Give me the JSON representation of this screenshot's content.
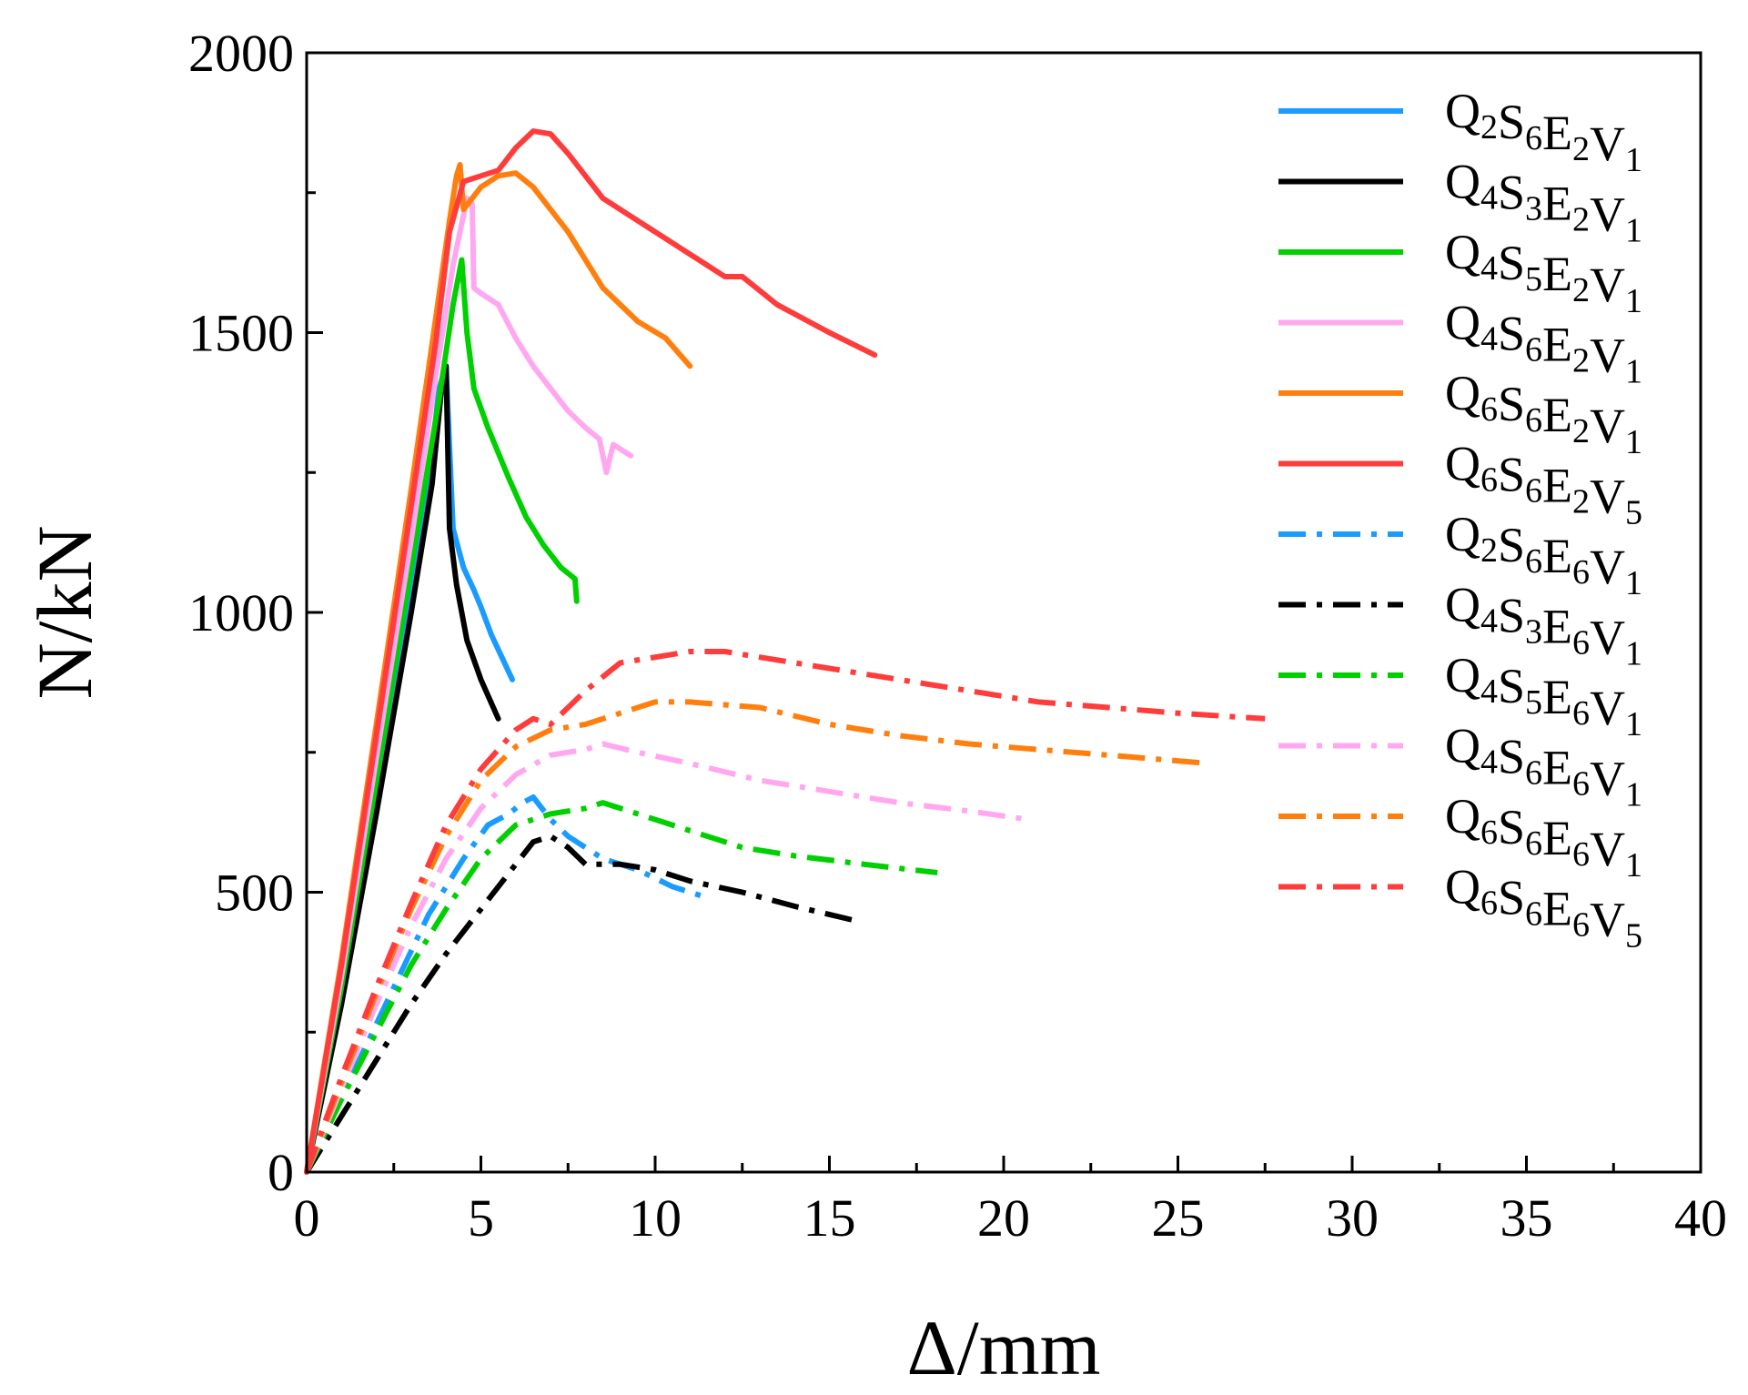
{
  "chart_data": {
    "type": "line",
    "title": "",
    "xlabel": "Δ/mm",
    "ylabel": "N/kN",
    "xlim": [
      0,
      40
    ],
    "ylim": [
      0,
      2000
    ],
    "xticks": [
      0,
      5,
      10,
      15,
      20,
      25,
      30,
      35,
      40
    ],
    "yticks": [
      0,
      500,
      1000,
      1500,
      2000
    ],
    "xtick_labels": [
      "0",
      "5",
      "10",
      "15",
      "20",
      "25",
      "30",
      "35",
      "40"
    ],
    "ytick_labels": [
      "0",
      "500",
      "1000",
      "1500",
      "2000"
    ],
    "grid": false,
    "legend_position": "top-right",
    "series": [
      {
        "name": "Q2S6E2V1",
        "parts": [
          [
            "Q",
            "2"
          ],
          [
            "S",
            "6"
          ],
          [
            "E",
            "2"
          ],
          [
            "V",
            "1"
          ]
        ],
        "color": "#1a9cff",
        "style": "solid",
        "x": [
          0,
          1,
          2,
          3,
          3.5,
          3.8,
          4.0,
          4.2,
          4.5,
          4.8,
          5.0,
          5.3,
          5.6,
          5.9
        ],
        "y": [
          0,
          320,
          680,
          1050,
          1230,
          1400,
          1440,
          1150,
          1080,
          1040,
          1010,
          960,
          920,
          880
        ]
      },
      {
        "name": "Q4S3E2V1",
        "parts": [
          [
            "Q",
            "4"
          ],
          [
            "S",
            "3"
          ],
          [
            "E",
            "2"
          ],
          [
            "V",
            "1"
          ]
        ],
        "color": "#000000",
        "style": "solid",
        "x": [
          0,
          1,
          2,
          3,
          3.6,
          3.9,
          4.0,
          4.1,
          4.3,
          4.6,
          5.0,
          5.5
        ],
        "y": [
          0,
          300,
          640,
          1000,
          1230,
          1420,
          1440,
          1150,
          1050,
          950,
          880,
          810
        ]
      },
      {
        "name": "Q4S5E2V1",
        "parts": [
          [
            "Q",
            "4"
          ],
          [
            "S",
            "5"
          ],
          [
            "E",
            "2"
          ],
          [
            "V",
            "1"
          ]
        ],
        "color": "#00d000",
        "style": "solid",
        "x": [
          0,
          1,
          2,
          3,
          3.8,
          4.2,
          4.45,
          4.6,
          4.8,
          5.2,
          5.8,
          6.3,
          6.8,
          7.3,
          7.7,
          7.75
        ],
        "y": [
          0,
          330,
          700,
          1080,
          1380,
          1550,
          1630,
          1500,
          1400,
          1330,
          1240,
          1170,
          1120,
          1080,
          1060,
          1020
        ]
      },
      {
        "name": "Q4S6E2V1",
        "parts": [
          [
            "Q",
            "4"
          ],
          [
            "S",
            "6"
          ],
          [
            "E",
            "2"
          ],
          [
            "V",
            "1"
          ]
        ],
        "color": "#ffa8f0",
        "style": "solid",
        "x": [
          0,
          1,
          2,
          3,
          3.7,
          4.2,
          4.6,
          4.75,
          4.8,
          5.0,
          5.5,
          6.0,
          6.5,
          7.0,
          7.5,
          8.0,
          8.4,
          8.6,
          8.8,
          9.3
        ],
        "y": [
          0,
          350,
          740,
          1130,
          1420,
          1620,
          1740,
          1730,
          1580,
          1570,
          1550,
          1490,
          1440,
          1400,
          1360,
          1330,
          1310,
          1250,
          1300,
          1280
        ]
      },
      {
        "name": "Q6S6E2V1",
        "parts": [
          [
            "Q",
            "6"
          ],
          [
            "S",
            "6"
          ],
          [
            "E",
            "2"
          ],
          [
            "V",
            "1"
          ]
        ],
        "color": "#ff7f0e",
        "style": "solid",
        "x": [
          0,
          1,
          2,
          3,
          3.6,
          4.1,
          4.3,
          4.4,
          4.5,
          5.0,
          5.5,
          6.0,
          6.5,
          7.0,
          7.5,
          8.0,
          8.5,
          9.5,
          10.3,
          11.0
        ],
        "y": [
          0,
          380,
          800,
          1220,
          1480,
          1700,
          1780,
          1800,
          1720,
          1760,
          1780,
          1785,
          1760,
          1720,
          1680,
          1630,
          1580,
          1520,
          1490,
          1440
        ]
      },
      {
        "name": "Q6S6E2V5",
        "parts": [
          [
            "Q",
            "6"
          ],
          [
            "S",
            "6"
          ],
          [
            "E",
            "2"
          ],
          [
            "V",
            "5"
          ]
        ],
        "color": "#ff3c3c",
        "style": "solid",
        "x": [
          0,
          1,
          2,
          3,
          3.7,
          4.1,
          4.5,
          5.0,
          5.5,
          6.0,
          6.5,
          7.0,
          7.5,
          8.0,
          8.5,
          9.5,
          10.5,
          11.5,
          12.0,
          12.5,
          13.5,
          15.0,
          16.3
        ],
        "y": [
          0,
          370,
          780,
          1190,
          1480,
          1680,
          1770,
          1780,
          1790,
          1830,
          1860,
          1855,
          1820,
          1780,
          1740,
          1700,
          1660,
          1620,
          1600,
          1600,
          1550,
          1500,
          1460
        ]
      },
      {
        "name": "Q2S6E6V1",
        "parts": [
          [
            "Q",
            "2"
          ],
          [
            "S",
            "6"
          ],
          [
            "E",
            "6"
          ],
          [
            "V",
            "1"
          ]
        ],
        "color": "#1a9cff",
        "style": "dashdot",
        "x": [
          0,
          1.2,
          2.5,
          3.5,
          4.5,
          5.2,
          5.8,
          6.2,
          6.5,
          7.0,
          7.5,
          8.0,
          8.5,
          9.5,
          10.5,
          11.5
        ],
        "y": [
          0,
          160,
          330,
          460,
          560,
          620,
          640,
          660,
          670,
          630,
          600,
          580,
          560,
          540,
          510,
          490
        ]
      },
      {
        "name": "Q4S3E6V1",
        "parts": [
          [
            "Q",
            "4"
          ],
          [
            "S",
            "3"
          ],
          [
            "E",
            "6"
          ],
          [
            "V",
            "1"
          ]
        ],
        "color": "#000000",
        "style": "dashdot",
        "x": [
          0,
          1,
          2,
          3,
          4,
          5,
          6,
          6.5,
          7.0,
          7.5,
          8.0,
          9.0,
          10.0,
          11.0,
          12.5,
          14.0,
          15.7
        ],
        "y": [
          0,
          100,
          200,
          300,
          390,
          470,
          550,
          590,
          600,
          580,
          550,
          550,
          540,
          520,
          500,
          475,
          450
        ]
      },
      {
        "name": "Q4S5E6V1",
        "parts": [
          [
            "Q",
            "4"
          ],
          [
            "S",
            "5"
          ],
          [
            "E",
            "6"
          ],
          [
            "V",
            "1"
          ]
        ],
        "color": "#00d000",
        "style": "dashdot",
        "x": [
          0,
          1,
          2,
          3,
          4,
          5,
          6,
          7,
          8,
          8.5,
          9.5,
          11,
          12.5,
          14,
          16,
          18.1
        ],
        "y": [
          0,
          130,
          250,
          370,
          470,
          560,
          620,
          640,
          650,
          660,
          640,
          610,
          580,
          565,
          550,
          535
        ]
      },
      {
        "name": "Q4S6E6V1",
        "parts": [
          [
            "Q",
            "4"
          ],
          [
            "S",
            "6"
          ],
          [
            "E",
            "6"
          ],
          [
            "V",
            "1"
          ]
        ],
        "color": "#ffa8f0",
        "style": "dashdot",
        "x": [
          0,
          1,
          2,
          3,
          4,
          5,
          6,
          7,
          8,
          8.5,
          9.5,
          11,
          13,
          15,
          17,
          19,
          20.7
        ],
        "y": [
          0,
          150,
          300,
          440,
          560,
          650,
          710,
          745,
          755,
          765,
          750,
          730,
          700,
          680,
          660,
          645,
          630
        ]
      },
      {
        "name": "Q6S6E6V1",
        "parts": [
          [
            "Q",
            "6"
          ],
          [
            "S",
            "6"
          ],
          [
            "E",
            "6"
          ],
          [
            "V",
            "1"
          ]
        ],
        "color": "#ff7f0e",
        "style": "dashdot",
        "x": [
          0,
          1,
          2,
          3,
          4,
          5,
          6,
          7,
          8,
          9,
          10,
          11,
          12,
          13,
          15,
          17,
          19,
          21,
          23,
          25.9
        ],
        "y": [
          0,
          160,
          320,
          470,
          600,
          700,
          760,
          790,
          800,
          820,
          840,
          840,
          835,
          830,
          800,
          780,
          765,
          755,
          745,
          730
        ]
      },
      {
        "name": "Q6S6E6V5",
        "parts": [
          [
            "Q",
            "6"
          ],
          [
            "S",
            "6"
          ],
          [
            "E",
            "6"
          ],
          [
            "V",
            "5"
          ]
        ],
        "color": "#ff3c3c",
        "style": "dashdot",
        "x": [
          0,
          1,
          2,
          3,
          4,
          5,
          6,
          6.5,
          7,
          8,
          9,
          10,
          11,
          12,
          13,
          15,
          17,
          19,
          21,
          23,
          25,
          27.5
        ],
        "y": [
          0,
          170,
          330,
          480,
          620,
          720,
          790,
          810,
          800,
          860,
          910,
          920,
          930,
          930,
          920,
          900,
          880,
          860,
          840,
          830,
          820,
          810
        ]
      }
    ]
  }
}
